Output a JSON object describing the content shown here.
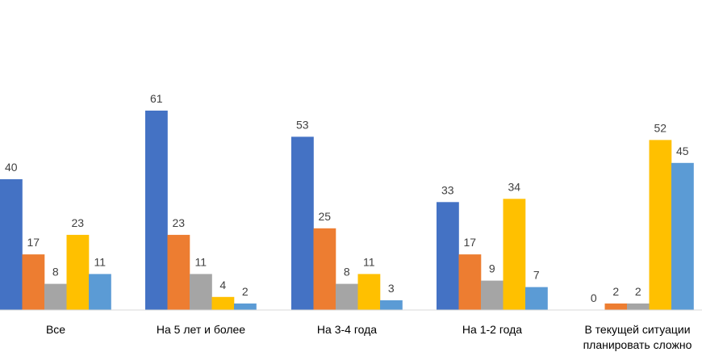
{
  "chart_data": {
    "type": "bar",
    "categories": [
      [
        "Все"
      ],
      [
        "На 5 лет и более"
      ],
      [
        "На 3-4 года"
      ],
      [
        "На 1-2 года"
      ],
      [
        "В текущей ситуации",
        "планировать сложно"
      ]
    ],
    "series": [
      {
        "color": "#4472C4",
        "values": [
          40,
          61,
          53,
          33,
          0
        ]
      },
      {
        "color": "#ED7D31",
        "values": [
          17,
          23,
          25,
          17,
          2
        ]
      },
      {
        "color": "#A5A5A5",
        "values": [
          8,
          11,
          8,
          9,
          2
        ]
      },
      {
        "color": "#FFC000",
        "values": [
          23,
          4,
          11,
          34,
          52
        ]
      },
      {
        "color": "#5B9BD5",
        "values": [
          11,
          2,
          3,
          7,
          45
        ]
      }
    ],
    "ylim": [
      0,
      65
    ],
    "grid": false,
    "legend": "none"
  }
}
